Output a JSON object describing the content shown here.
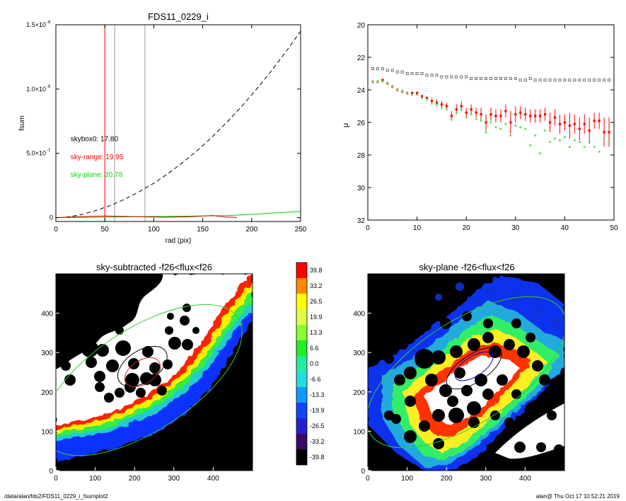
{
  "footer": {
    "path": "/data/alan/fds2/FDS11_0229_i_fsumplot2",
    "stamp": "alan@  Thu Oct 17 10:52:21 2019"
  },
  "chart_data": [
    {
      "type": "line",
      "title": "FDS11_0229_i",
      "xlabel": "rad (pix)",
      "ylabel": "fsum",
      "xlim": [
        0,
        250
      ],
      "ylim": [
        -3e-08,
        1.5e-06
      ],
      "x_ticks": [
        "0",
        "50",
        "100",
        "150",
        "200",
        "250"
      ],
      "y_ticks": [
        {
          "value": 0,
          "mantissa": "0",
          "exp": ""
        },
        {
          "value": 5e-07,
          "mantissa": "5.0×10",
          "exp": "-7"
        },
        {
          "value": 1e-06,
          "mantissa": "1.0×10",
          "exp": "-6"
        },
        {
          "value": 1.5e-06,
          "mantissa": "1.5×10",
          "exp": "-6"
        }
      ],
      "vlines": [
        {
          "x": 50,
          "color": "#ff0000"
        },
        {
          "x": 60,
          "color": "#999999"
        },
        {
          "x": 91,
          "color": "#999999"
        }
      ],
      "series": [
        {
          "style": "dashed",
          "color": "#000000",
          "x": [
            10,
            25,
            40,
            55,
            70,
            85,
            100,
            115,
            130,
            145,
            160,
            175,
            190,
            205,
            220,
            235,
            250
          ],
          "y": [
            3e-09,
            2.2e-08,
            5.3e-08,
            9.3e-08,
            1.42e-07,
            2.01e-07,
            2.68e-07,
            3.45e-07,
            4.31e-07,
            5.26e-07,
            6.3e-07,
            7.44e-07,
            8.67e-07,
            9.99e-07,
            1.14e-06,
            1.29e-06,
            1.45e-06
          ]
        },
        {
          "style": "solid",
          "color": "#00cc00",
          "x": [
            0,
            50,
            100,
            140,
            175,
            200,
            220,
            250
          ],
          "y": [
            0,
            3e-09,
            9e-09,
            1.2e-08,
            1.6e-08,
            2.5e-08,
            3.5e-08,
            4.8e-08
          ]
        },
        {
          "style": "solid",
          "color": "#cc0000",
          "x": [
            0,
            25,
            50,
            80,
            110,
            135,
            150,
            160,
            172,
            185
          ],
          "y": [
            0,
            8e-09,
            1.3e-08,
            8e-09,
            3e-09,
            6e-09,
            1.3e-08,
            1.6e-08,
            6e-09,
            1e-09
          ]
        }
      ],
      "annotations": [
        {
          "text": "skybox0: 17.80",
          "color": "#000000",
          "x": 15,
          "y": 5.95e-07
        },
        {
          "text": "sky-range: 19.95",
          "color": "#ff0000",
          "x": 15,
          "y": 4.55e-07
        },
        {
          "text": "sky-plane: 20.78",
          "color": "#00dd00",
          "x": 15,
          "y": 3.18e-07
        }
      ]
    },
    {
      "type": "scatter",
      "xlim": [
        0,
        50
      ],
      "ylim": [
        20,
        32
      ],
      "y_reversed": true,
      "x_ticks": [
        "0",
        "10",
        "20",
        "30",
        "40",
        "50"
      ],
      "y_ticks": [
        "20",
        "22",
        "24",
        "26",
        "28",
        "30",
        "32"
      ],
      "ylabel": "μ",
      "series": [
        {
          "marker": "open-square",
          "color": "#555555",
          "x": [
            1,
            2,
            3,
            4,
            5,
            6,
            7,
            8,
            9,
            10,
            11,
            12,
            13,
            14,
            15,
            16,
            17,
            18,
            19,
            20,
            21,
            22,
            23,
            24,
            25,
            26,
            27,
            28,
            29,
            30,
            31,
            32,
            33,
            34,
            35,
            36,
            37,
            38,
            39,
            40,
            41,
            42,
            43,
            44,
            45,
            46,
            47,
            48,
            49
          ],
          "y": [
            22.7,
            22.7,
            22.7,
            22.8,
            22.8,
            22.9,
            22.9,
            23.0,
            23.0,
            23.0,
            23.0,
            23.1,
            23.1,
            23.1,
            23.2,
            23.2,
            23.2,
            23.2,
            23.2,
            23.2,
            23.3,
            23.3,
            23.3,
            23.3,
            23.3,
            23.3,
            23.3,
            23.3,
            23.3,
            23.3,
            23.4,
            23.4,
            23.3,
            23.4,
            23.4,
            23.4,
            23.4,
            23.4,
            23.4,
            23.4,
            23.4,
            23.4,
            23.4,
            23.4,
            23.4,
            23.4,
            23.4,
            23.4,
            23.4
          ]
        },
        {
          "marker": "filled-square-errorbar",
          "color": "#ff0000",
          "x": [
            1,
            2,
            3,
            4,
            5,
            6,
            7,
            8,
            9,
            10,
            11,
            12,
            13,
            14,
            15,
            16,
            17,
            18,
            19,
            20,
            21,
            22,
            23,
            24,
            25,
            26,
            27,
            28,
            29,
            30,
            31,
            32,
            33,
            34,
            35,
            36,
            37,
            38,
            39,
            40,
            41,
            42,
            43,
            44,
            45,
            46,
            47,
            48,
            49
          ],
          "y": [
            23.5,
            23.5,
            23.4,
            23.6,
            23.8,
            24.0,
            24.1,
            24.2,
            24.2,
            24.2,
            24.4,
            24.5,
            24.7,
            24.8,
            24.9,
            25.0,
            25.6,
            25.2,
            25.0,
            25.4,
            25.2,
            25.4,
            25.5,
            26.0,
            25.5,
            25.6,
            25.6,
            25.3,
            26.0,
            25.5,
            25.4,
            25.5,
            25.6,
            25.6,
            25.6,
            25.5,
            26.0,
            25.7,
            26.1,
            26.0,
            26.2,
            26.1,
            26.4,
            26.1,
            26.5,
            25.9,
            25.9,
            26.6,
            26.6
          ],
          "err": [
            0.1,
            0.1,
            0.1,
            0.1,
            0.1,
            0.1,
            0.1,
            0.1,
            0.1,
            0.1,
            0.1,
            0.1,
            0.2,
            0.2,
            0.2,
            0.2,
            0.3,
            0.3,
            0.3,
            0.3,
            0.3,
            0.3,
            0.4,
            0.5,
            0.4,
            0.4,
            0.4,
            0.4,
            0.7,
            0.5,
            0.4,
            0.4,
            0.4,
            0.4,
            0.4,
            0.4,
            0.6,
            0.5,
            0.6,
            0.5,
            0.8,
            0.6,
            0.7,
            0.6,
            0.8,
            0.5,
            0.5,
            0.9,
            0.9
          ]
        },
        {
          "marker": "filled-square",
          "color": "#66dd66",
          "x": [
            1,
            2,
            3,
            4,
            5,
            6,
            7,
            8,
            9,
            10,
            11,
            12,
            13,
            14,
            15,
            16,
            17,
            18,
            19,
            20,
            21,
            22,
            23,
            24,
            25,
            26,
            27,
            28,
            29,
            30,
            31,
            32,
            33,
            34,
            35,
            36,
            37,
            38,
            39,
            40,
            41,
            42,
            43,
            44,
            45,
            46,
            47,
            48,
            49
          ],
          "y": [
            23.5,
            23.5,
            23.5,
            23.6,
            23.8,
            24.0,
            24.1,
            24.2,
            24.3,
            24.3,
            24.5,
            24.6,
            24.8,
            24.9,
            25.1,
            25.2,
            25.8,
            25.4,
            25.2,
            25.7,
            25.5,
            25.8,
            25.9,
            26.6,
            26.0,
            26.3,
            26.4,
            26.1,
            26.8,
            26.2,
            26.3,
            26.4,
            27.4,
            26.8,
            27.9,
            26.5,
            27.2,
            27.0,
            27.1,
            26.9,
            27.5,
            27.1,
            27.2,
            27.5,
            27.2,
            27.5,
            27.8,
            27.0,
            27.3
          ]
        }
      ]
    },
    {
      "type": "heatmap",
      "title": "sky-subtracted -f26<flux<f26",
      "xlim": [
        0,
        500
      ],
      "ylim": [
        0,
        500
      ],
      "x_ticks": [
        "0",
        "100",
        "200",
        "300",
        "400"
      ],
      "y_ticks": [
        "0",
        "100",
        "200",
        "300",
        "400"
      ],
      "ellipses": [
        {
          "cx": 220,
          "cy": 230,
          "rx": 290,
          "ry": 130,
          "angle": -33,
          "color": "#33cc33"
        },
        {
          "cx": 220,
          "cy": 265,
          "rx": 70,
          "ry": 40,
          "angle": -33,
          "color": "#000000"
        },
        {
          "cx": 220,
          "cy": 250,
          "rx": 50,
          "ry": 30,
          "angle": -33,
          "color": "#cc2222"
        }
      ]
    },
    {
      "type": "heatmap",
      "title": "sky-plane -f26<flux<f26",
      "xlim": [
        0,
        500
      ],
      "ylim": [
        0,
        500
      ],
      "x_ticks": [
        "0",
        "100",
        "200",
        "300",
        "400"
      ],
      "y_ticks": [
        "0",
        "100",
        "200",
        "300",
        "400"
      ],
      "ellipses": [
        {
          "cx": 250,
          "cy": 250,
          "rx": 290,
          "ry": 130,
          "angle": -33,
          "color": "#33cc33"
        },
        {
          "cx": 270,
          "cy": 260,
          "rx": 80,
          "ry": 35,
          "angle": -33,
          "color": "#000000"
        },
        {
          "cx": 270,
          "cy": 265,
          "rx": 55,
          "ry": 25,
          "angle": -33,
          "color": "#0000cc"
        }
      ]
    }
  ],
  "colorbar": {
    "labels": [
      "39.8",
      "33.2",
      "26.5",
      "19.9",
      "13.3",
      "6.6",
      "0.0",
      "-6.6",
      "-13.3",
      "-19.9",
      "-26.5",
      "-33.2",
      "-39.8"
    ],
    "colors": [
      "#ff0000",
      "#ff8800",
      "#ffff00",
      "#ddff44",
      "#88ff33",
      "#22ee22",
      "#22ee99",
      "#22dddd",
      "#1199ff",
      "#1144ff",
      "#2222cc",
      "#3a0a66",
      "#000000"
    ]
  }
}
